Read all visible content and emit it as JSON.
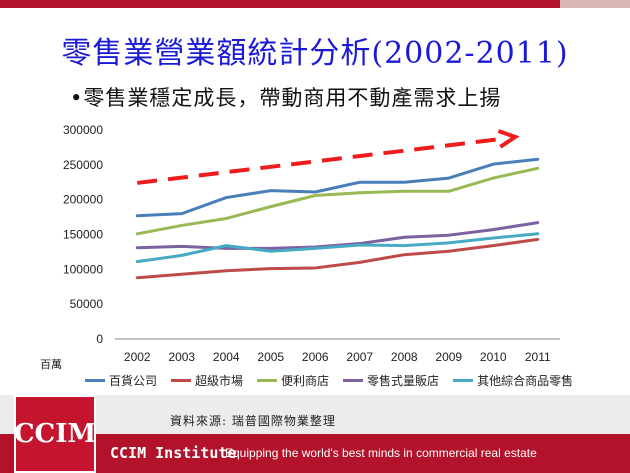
{
  "slide": {
    "title": "零售業營業額統計分析(2002-2011)",
    "subtitle": "•零售業穩定成長，帶動商用不動產需求上揚",
    "unit_label": "百萬",
    "source": "資料來源: 瑞普國際物業整理",
    "logo_text": "CCIM",
    "institute": "CCIM Institute",
    "tagline": "Equipping the world's best minds in commercial real estate"
  },
  "chart_data": {
    "type": "line",
    "x": [
      "2002",
      "2003",
      "2004",
      "2005",
      "2006",
      "2007",
      "2008",
      "2009",
      "2010",
      "2011"
    ],
    "ylim": [
      0,
      300000
    ],
    "yticks": [
      0,
      50000,
      100000,
      150000,
      200000,
      250000,
      300000
    ],
    "grid": false,
    "legend": "bottom",
    "series": [
      {
        "name": "百貨公司",
        "color": "#4a7ebb",
        "values": [
          177000,
          180000,
          203000,
          213000,
          211000,
          225000,
          225000,
          231000,
          251000,
          258000
        ]
      },
      {
        "name": "超級市場",
        "color": "#be4b48",
        "values": [
          88000,
          93000,
          98000,
          101000,
          102000,
          110000,
          121000,
          126000,
          134000,
          143000
        ]
      },
      {
        "name": "便利商店",
        "color": "#98b954",
        "values": [
          151000,
          163000,
          173000,
          190000,
          206000,
          210000,
          212000,
          212000,
          231000,
          245000
        ]
      },
      {
        "name": "零售式量販店",
        "color": "#7d60a0",
        "values": [
          131000,
          133000,
          130000,
          130000,
          132000,
          137000,
          146000,
          149000,
          157000,
          167000
        ]
      },
      {
        "name": "其他綜合商品零售",
        "color": "#46aac5",
        "values": [
          111000,
          120000,
          134000,
          126000,
          130000,
          135000,
          134000,
          138000,
          145000,
          151000
        ]
      }
    ],
    "trend_arrow": {
      "color": "#ee1c1c",
      "from": [
        2002,
        224000
      ],
      "to": [
        2010,
        290000
      ]
    }
  }
}
